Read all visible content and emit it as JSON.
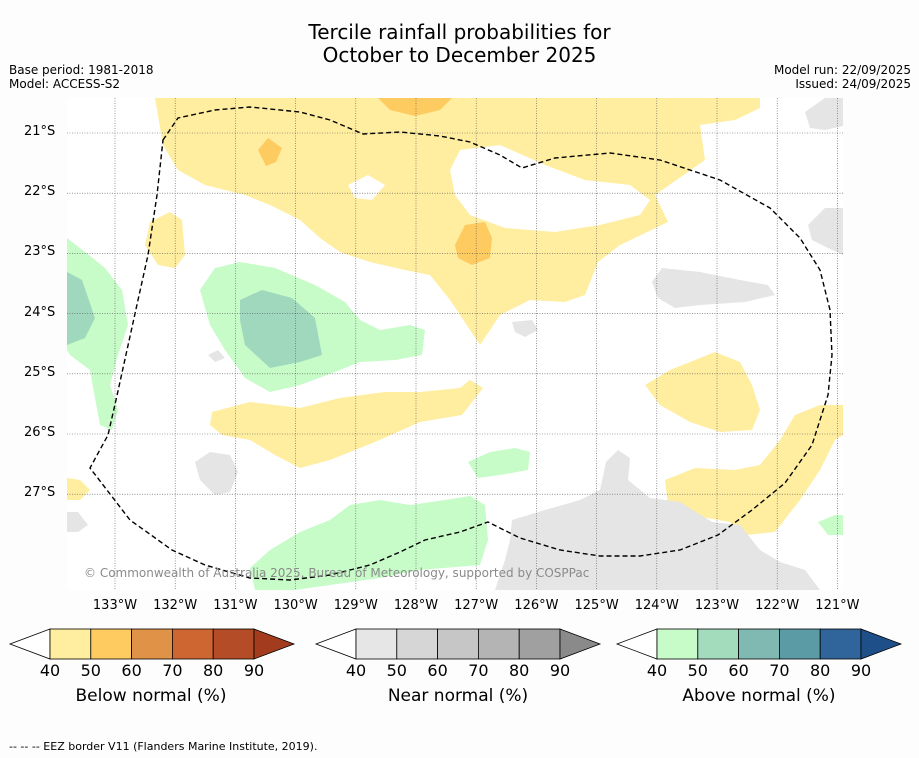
{
  "title": {
    "line1": "Tercile rainfall probabilities for",
    "line2": "October to December 2025"
  },
  "meta": {
    "base_period": "Base period: 1981-2018",
    "model": "Model: ACCESS-S2",
    "model_run": "Model run: 22/09/2025",
    "issued": "Issued: 24/09/2025"
  },
  "map": {
    "lat_labels": [
      "21°S",
      "22°S",
      "23°S",
      "24°S",
      "25°S",
      "26°S",
      "27°S"
    ],
    "lon_labels": [
      "133°W",
      "132°W",
      "131°W",
      "130°W",
      "129°W",
      "128°W",
      "127°W",
      "126°W",
      "125°W",
      "124°W",
      "123°W",
      "122°W",
      "121°W"
    ],
    "copyright": "© Commonwealth of Australia 2025, Bureau of Meteorology, supported by COSPPac",
    "colors": {
      "below_40": "#ffeda0",
      "below_50": "#fecb61",
      "near_40": "#e5e5e5",
      "above_40": "#c7fbc8",
      "above_50": "#a0d8bd"
    }
  },
  "colorbars": [
    {
      "name": "below",
      "title": "Below normal (%)",
      "ticks": [
        "40",
        "50",
        "60",
        "70",
        "80",
        "90"
      ],
      "colors": [
        "#ffeda0",
        "#fecb61",
        "#e09346",
        "#cd6630",
        "#b34c27",
        "#a33c1e"
      ]
    },
    {
      "name": "near",
      "title": "Near normal (%)",
      "ticks": [
        "40",
        "50",
        "60",
        "70",
        "80",
        "90"
      ],
      "colors": [
        "#e6e6e6",
        "#d6d6d6",
        "#c6c6c6",
        "#b4b4b4",
        "#a0a0a0",
        "#8a8a8a"
      ]
    },
    {
      "name": "above",
      "title": "Above normal (%)",
      "ticks": [
        "40",
        "50",
        "60",
        "70",
        "80",
        "90"
      ],
      "colors": [
        "#c7fbc8",
        "#a3dbbd",
        "#7fb9b2",
        "#5a9ba6",
        "#30659c",
        "#1f4f88"
      ]
    }
  ],
  "footnote": "--  --  -- EEZ border V11 (Flanders Marine Institute, 2019)."
}
